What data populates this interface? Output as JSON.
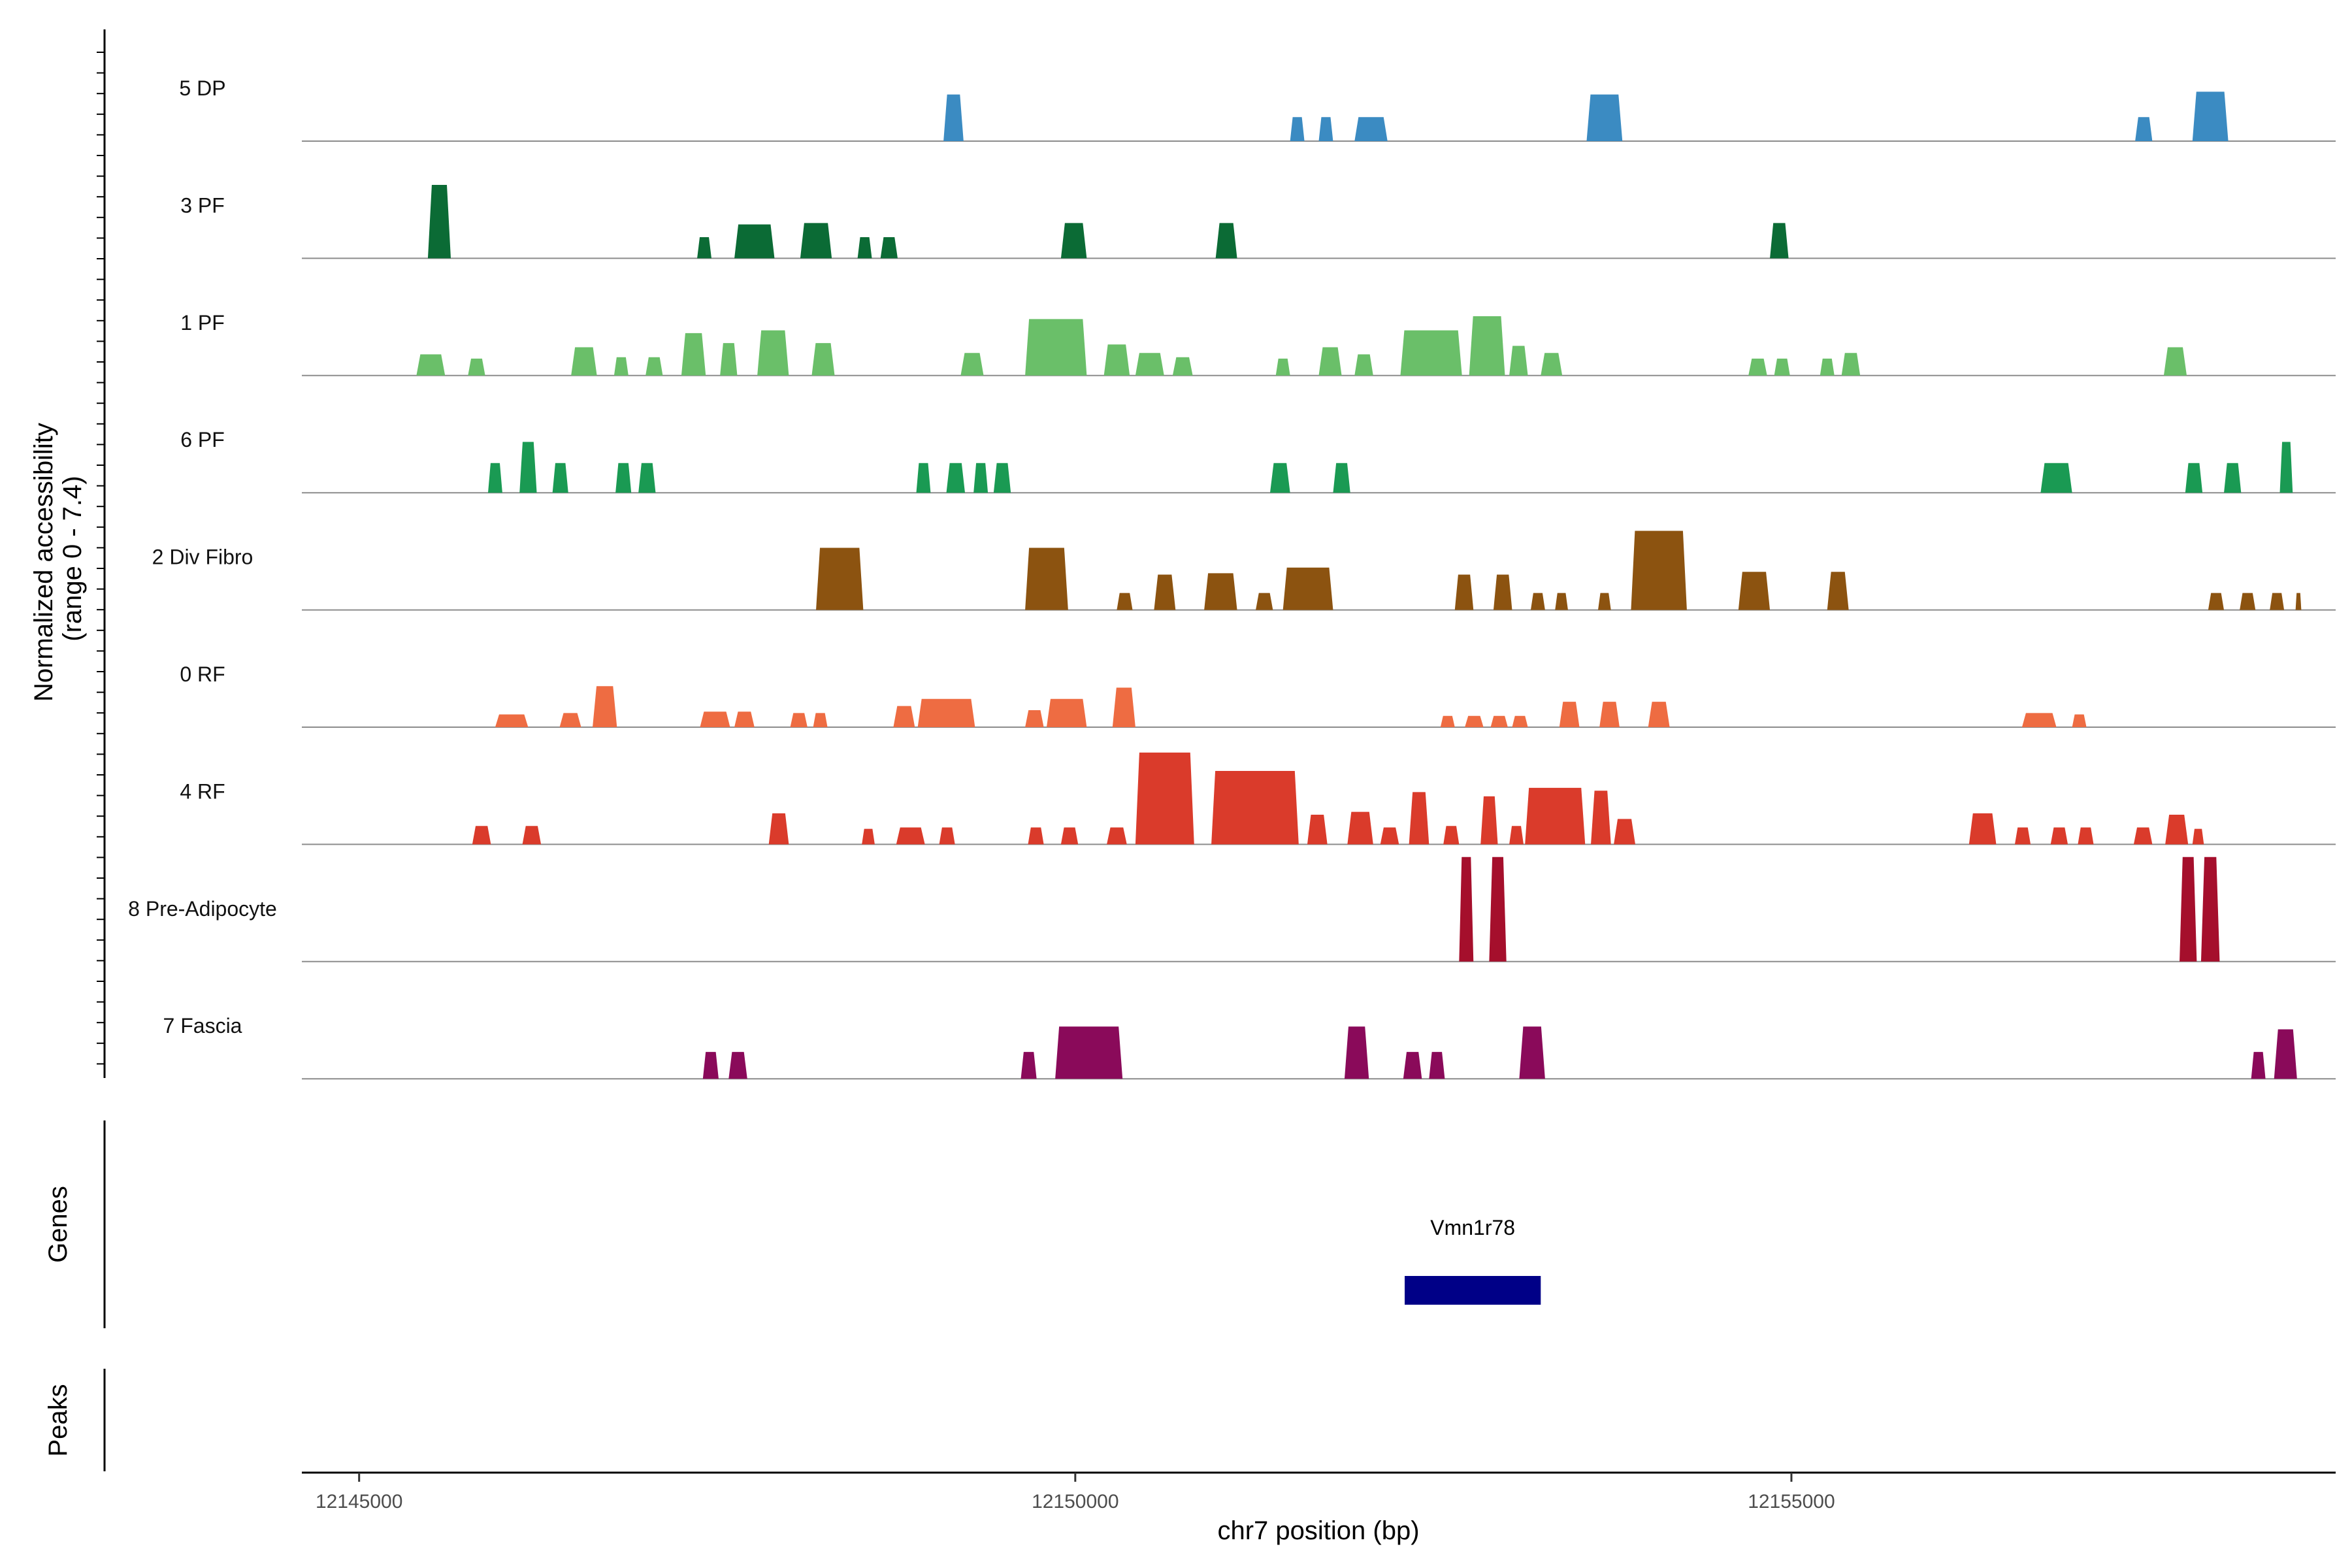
{
  "chart_data": {
    "type": "coverage",
    "chromosome": "chr7",
    "xlim": [
      12144600,
      12158800
    ],
    "y_axis_title_line1": "Normalized accessibility",
    "y_axis_title_line2": "(range 0 - 7.4)",
    "ylim": [
      0,
      7.4
    ],
    "xlabel": "chr7 position (bp)",
    "x_ticks": [
      12145000,
      12150000,
      12155000
    ],
    "x_tick_labels": [
      "12145000",
      "12150000",
      "12155000"
    ],
    "tracks": [
      {
        "name": "5 DP",
        "color": "#3b8bc2",
        "peaks": [
          [
            12149080,
            12149220,
            3.3
          ],
          [
            12151500,
            12151600,
            1.7
          ],
          [
            12151700,
            12151800,
            1.7
          ],
          [
            12151950,
            12152180,
            1.7
          ],
          [
            12153570,
            12153820,
            3.3
          ],
          [
            12157400,
            12157520,
            1.7
          ],
          [
            12157800,
            12158050,
            3.5
          ]
        ]
      },
      {
        "name": "3 PF",
        "color": "#0b6b35",
        "peaks": [
          [
            12145480,
            12145640,
            5.2
          ],
          [
            12147360,
            12147460,
            1.5
          ],
          [
            12147620,
            12147900,
            2.4
          ],
          [
            12148080,
            12148300,
            2.5
          ],
          [
            12148480,
            12148580,
            1.5
          ],
          [
            12148640,
            12148760,
            1.5
          ],
          [
            12149900,
            12150080,
            2.5
          ],
          [
            12150980,
            12151130,
            2.5
          ],
          [
            12154850,
            12154980,
            2.5
          ]
        ]
      },
      {
        "name": "1 PF",
        "color": "#6abf69",
        "peaks": [
          [
            12145400,
            12145600,
            1.5
          ],
          [
            12145760,
            12145880,
            1.2
          ],
          [
            12146480,
            12146660,
            2.0
          ],
          [
            12146780,
            12146880,
            1.3
          ],
          [
            12147000,
            12147120,
            1.3
          ],
          [
            12147250,
            12147420,
            3.0
          ],
          [
            12147520,
            12147640,
            2.3
          ],
          [
            12147780,
            12148000,
            3.2
          ],
          [
            12148160,
            12148320,
            2.3
          ],
          [
            12149200,
            12149360,
            1.6
          ],
          [
            12149650,
            12150080,
            4.0
          ],
          [
            12150200,
            12150380,
            2.2
          ],
          [
            12150420,
            12150620,
            1.6
          ],
          [
            12150680,
            12150820,
            1.3
          ],
          [
            12151400,
            12151500,
            1.2
          ],
          [
            12151700,
            12151860,
            2.0
          ],
          [
            12151950,
            12152080,
            1.5
          ],
          [
            12152270,
            12152700,
            3.2
          ],
          [
            12152750,
            12153000,
            4.2
          ],
          [
            12153030,
            12153160,
            2.1
          ],
          [
            12153250,
            12153400,
            1.6
          ],
          [
            12154700,
            12154830,
            1.2
          ],
          [
            12154880,
            12154990,
            1.2
          ],
          [
            12155200,
            12155300,
            1.2
          ],
          [
            12155350,
            12155480,
            1.6
          ],
          [
            12157600,
            12157760,
            2.0
          ]
        ]
      },
      {
        "name": "6 PF",
        "color": "#1a9a53",
        "peaks": [
          [
            12145900,
            12146000,
            2.1
          ],
          [
            12146120,
            12146240,
            3.6
          ],
          [
            12146350,
            12146460,
            2.1
          ],
          [
            12146790,
            12146900,
            2.1
          ],
          [
            12146950,
            12147070,
            2.1
          ],
          [
            12148890,
            12148990,
            2.1
          ],
          [
            12149100,
            12149230,
            2.1
          ],
          [
            12149290,
            12149390,
            2.1
          ],
          [
            12149430,
            12149550,
            2.1
          ],
          [
            12151360,
            12151500,
            2.1
          ],
          [
            12151800,
            12151920,
            2.1
          ],
          [
            12156740,
            12156960,
            2.1
          ],
          [
            12157750,
            12157870,
            2.1
          ],
          [
            12158020,
            12158140,
            2.1
          ],
          [
            12158410,
            12158500,
            3.6
          ]
        ]
      },
      {
        "name": "2 Div Fibro",
        "color": "#8c5310",
        "peaks": [
          [
            12148190,
            12148520,
            4.4
          ],
          [
            12149650,
            12149950,
            4.4
          ],
          [
            12150290,
            12150400,
            1.2
          ],
          [
            12150550,
            12150700,
            2.5
          ],
          [
            12150900,
            12151130,
            2.6
          ],
          [
            12151260,
            12151380,
            1.2
          ],
          [
            12151450,
            12151800,
            3.0
          ],
          [
            12152650,
            12152780,
            2.5
          ],
          [
            12152920,
            12153050,
            2.5
          ],
          [
            12153180,
            12153280,
            1.2
          ],
          [
            12153350,
            12153440,
            1.2
          ],
          [
            12153650,
            12153740,
            1.2
          ],
          [
            12153880,
            12154270,
            5.6
          ],
          [
            12154630,
            12154850,
            2.7
          ],
          [
            12155250,
            12155400,
            2.7
          ],
          [
            12157910,
            12158020,
            1.2
          ],
          [
            12158130,
            12158240,
            1.2
          ],
          [
            12158340,
            12158440,
            1.2
          ],
          [
            12158520,
            12158560,
            1.2
          ]
        ]
      },
      {
        "name": "0 RF",
        "color": "#ee6c42",
        "peaks": [
          [
            12145950,
            12146180,
            0.9
          ],
          [
            12146400,
            12146550,
            1.0
          ],
          [
            12146630,
            12146800,
            2.9
          ],
          [
            12147380,
            12147590,
            1.1
          ],
          [
            12147620,
            12147760,
            1.1
          ],
          [
            12148010,
            12148130,
            1.0
          ],
          [
            12148170,
            12148270,
            1.0
          ],
          [
            12148730,
            12148880,
            1.5
          ],
          [
            12148900,
            12149300,
            2.0
          ],
          [
            12149650,
            12149780,
            1.2
          ],
          [
            12149800,
            12150080,
            2.0
          ],
          [
            12150260,
            12150420,
            2.8
          ],
          [
            12152550,
            12152650,
            0.8
          ],
          [
            12152720,
            12152850,
            0.8
          ],
          [
            12152900,
            12153020,
            0.8
          ],
          [
            12153050,
            12153160,
            0.8
          ],
          [
            12153380,
            12153520,
            1.8
          ],
          [
            12153660,
            12153800,
            1.8
          ],
          [
            12154000,
            12154150,
            1.8
          ],
          [
            12156610,
            12156850,
            1.0
          ],
          [
            12156960,
            12157060,
            0.9
          ]
        ]
      },
      {
        "name": "4 RF",
        "color": "#da3b2b",
        "peaks": [
          [
            12145790,
            12145920,
            1.3
          ],
          [
            12146140,
            12146270,
            1.3
          ],
          [
            12147860,
            12148000,
            2.2
          ],
          [
            12148510,
            12148600,
            1.1
          ],
          [
            12148750,
            12148950,
            1.2
          ],
          [
            12149050,
            12149160,
            1.2
          ],
          [
            12149670,
            12149780,
            1.2
          ],
          [
            12149900,
            12150020,
            1.2
          ],
          [
            12150220,
            12150360,
            1.2
          ],
          [
            12150420,
            12150830,
            6.5
          ],
          [
            12150950,
            12151560,
            5.2
          ],
          [
            12151620,
            12151760,
            2.1
          ],
          [
            12151900,
            12152080,
            2.3
          ],
          [
            12152130,
            12152260,
            1.2
          ],
          [
            12152330,
            12152470,
            3.7
          ],
          [
            12152570,
            12152680,
            1.3
          ],
          [
            12152830,
            12152950,
            3.4
          ],
          [
            12153030,
            12153130,
            1.3
          ],
          [
            12153140,
            12153560,
            4.0
          ],
          [
            12153600,
            12153740,
            3.8
          ],
          [
            12153760,
            12153910,
            1.8
          ],
          [
            12156240,
            12156430,
            2.2
          ],
          [
            12156560,
            12156670,
            1.2
          ],
          [
            12156810,
            12156930,
            1.2
          ],
          [
            12157000,
            12157110,
            1.2
          ],
          [
            12157390,
            12157520,
            1.2
          ],
          [
            12157610,
            12157770,
            2.1
          ],
          [
            12157800,
            12157880,
            1.1
          ]
        ]
      },
      {
        "name": "8 Pre-Adipocyte",
        "color": "#a50f2c",
        "peaks": [
          [
            12152680,
            12152780,
            7.4
          ],
          [
            12152890,
            12153010,
            7.4
          ],
          [
            12157710,
            12157830,
            7.4
          ],
          [
            12157860,
            12157990,
            7.4
          ]
        ]
      },
      {
        "name": "7 Fascia",
        "color": "#8a0a5a",
        "peaks": [
          [
            12147400,
            12147510,
            1.9
          ],
          [
            12147580,
            12147710,
            1.9
          ],
          [
            12149620,
            12149730,
            1.9
          ],
          [
            12149860,
            12150330,
            3.7
          ],
          [
            12151880,
            12152050,
            3.7
          ],
          [
            12152290,
            12152420,
            1.9
          ],
          [
            12152470,
            12152580,
            1.9
          ],
          [
            12153100,
            12153280,
            3.7
          ],
          [
            12158210,
            12158310,
            1.9
          ],
          [
            12158370,
            12158530,
            3.5
          ]
        ]
      }
    ],
    "genes_label": "Genes",
    "genes": [
      {
        "name": "Vmn1r78",
        "start": 12152300,
        "end": 12153250
      }
    ],
    "gene_color": "#000087",
    "peaks_label": "Peaks"
  }
}
